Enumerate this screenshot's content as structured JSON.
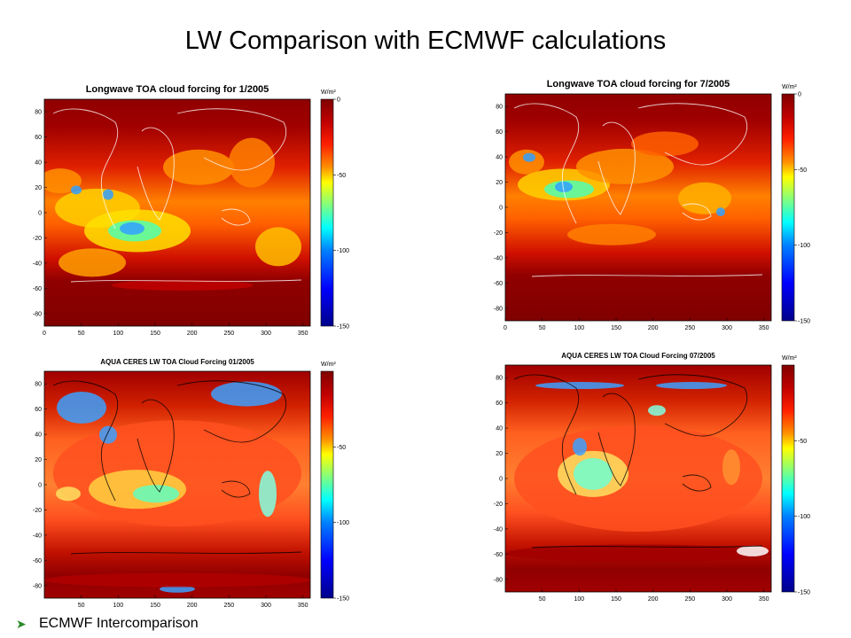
{
  "slide": {
    "title": "LW Comparison with ECMWF calculations",
    "bullet": "ECMWF Intercomparison",
    "bullet_icon": "green-arrow-bullet-icon"
  },
  "chart_data": [
    {
      "type": "heatmap",
      "title": "Longwave TOA cloud forcing for 1/2005",
      "unit": "W/m²",
      "xticks": [
        0,
        50,
        100,
        150,
        200,
        250,
        300,
        350
      ],
      "yticks": [
        80,
        60,
        40,
        20,
        0,
        -20,
        -40,
        -60,
        -80
      ],
      "colorbar_ticks": [
        0,
        -50,
        -100,
        -150
      ],
      "colorbar_range": [
        -150,
        0
      ],
      "coastline_color": "#ffffff"
    },
    {
      "type": "heatmap",
      "title": "Longwave TOA cloud forcing for 7/2005",
      "unit": "W/m²",
      "xticks": [
        0,
        50,
        100,
        150,
        200,
        250,
        300,
        350
      ],
      "yticks": [
        80,
        60,
        40,
        20,
        0,
        -20,
        -40,
        -60,
        -80
      ],
      "colorbar_ticks": [
        0,
        -50,
        -100,
        -150
      ],
      "colorbar_range": [
        -150,
        0
      ],
      "coastline_color": "#ffffff"
    },
    {
      "type": "heatmap",
      "title": "AQUA CERES LW TOA Cloud Forcing 01/2005",
      "unit": "W/m²",
      "xticks": [
        50,
        100,
        150,
        200,
        250,
        300,
        350
      ],
      "yticks": [
        80,
        60,
        40,
        20,
        0,
        -20,
        -40,
        -60,
        -80
      ],
      "colorbar_ticks": [
        -50,
        -100,
        -150
      ],
      "colorbar_range": [
        -150,
        0
      ],
      "coastline_color": "#000000"
    },
    {
      "type": "heatmap",
      "title": "AQUA CERES LW TOA Cloud Forcing 07/2005",
      "unit": "W/m²",
      "xticks": [
        50,
        100,
        150,
        200,
        250,
        300,
        350
      ],
      "yticks": [
        80,
        60,
        40,
        20,
        0,
        -20,
        -40,
        -60,
        -80
      ],
      "colorbar_ticks": [
        -50,
        -100,
        -150
      ],
      "colorbar_range": [
        -150,
        0
      ],
      "coastline_color": "#000000"
    }
  ]
}
